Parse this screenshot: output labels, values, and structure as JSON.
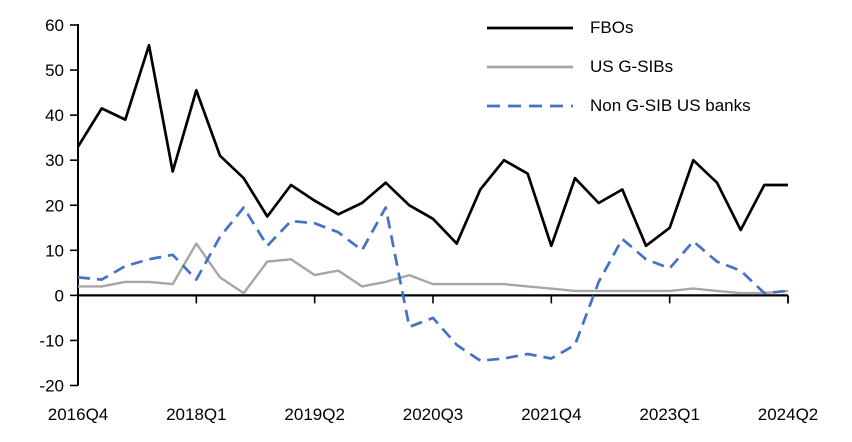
{
  "chart_data": {
    "type": "line",
    "title": "",
    "xlabel": "",
    "ylabel": "",
    "grid": false,
    "legend_position": "top-right",
    "ylim": [
      -20,
      60
    ],
    "y_ticks": [
      60,
      50,
      40,
      30,
      20,
      10,
      0,
      -10,
      -20
    ],
    "x_tick_labels": [
      "2016Q4",
      "2018Q1",
      "2019Q2",
      "2020Q3",
      "2021Q4",
      "2023Q1",
      "2024Q2"
    ],
    "x_tick_indices": [
      0,
      5,
      10,
      15,
      20,
      25,
      30
    ],
    "categories": [
      "2016Q4",
      "2017Q1",
      "2017Q2",
      "2017Q3",
      "2017Q4",
      "2018Q1",
      "2018Q2",
      "2018Q3",
      "2018Q4",
      "2019Q1",
      "2019Q2",
      "2019Q3",
      "2019Q4",
      "2020Q1",
      "2020Q2",
      "2020Q3",
      "2020Q4",
      "2021Q1",
      "2021Q2",
      "2021Q3",
      "2021Q4",
      "2022Q1",
      "2022Q2",
      "2022Q3",
      "2022Q4",
      "2023Q1",
      "2023Q2",
      "2023Q3",
      "2023Q4",
      "2024Q1",
      "2024Q2"
    ],
    "series": [
      {
        "name": "FBOs",
        "color": "#000000",
        "style": "solid",
        "values": [
          33,
          41.5,
          39,
          55.5,
          27.5,
          45.5,
          31,
          26,
          17.5,
          24.5,
          21,
          18,
          20.5,
          25,
          20,
          17,
          11.5,
          23.5,
          30,
          27,
          11,
          26,
          20.5,
          23.5,
          11,
          15,
          30,
          25,
          14.5,
          24.5,
          24.5
        ]
      },
      {
        "name": "US G-SIBs",
        "color": "#A6A6A6",
        "style": "solid",
        "values": [
          2,
          2,
          3,
          3,
          2.5,
          11.5,
          4,
          0.5,
          7.5,
          8,
          4.5,
          5.5,
          2,
          3,
          4.5,
          2.5,
          2.5,
          2.5,
          2.5,
          2,
          1.5,
          1,
          1,
          1,
          1,
          1,
          1.5,
          1,
          0.5,
          0.5,
          1
        ]
      },
      {
        "name": "Non G-SIB US banks",
        "color": "#4472C4",
        "style": "dashed",
        "values": [
          4,
          3.5,
          6.5,
          8,
          9,
          3.5,
          13,
          19.5,
          11,
          16.5,
          16,
          14,
          10,
          19.5,
          -7,
          -5,
          -11,
          -14.5,
          -14,
          -13,
          -14,
          -11,
          3,
          12.5,
          8,
          6,
          12,
          7.5,
          5.5,
          0.5,
          1
        ]
      }
    ]
  }
}
